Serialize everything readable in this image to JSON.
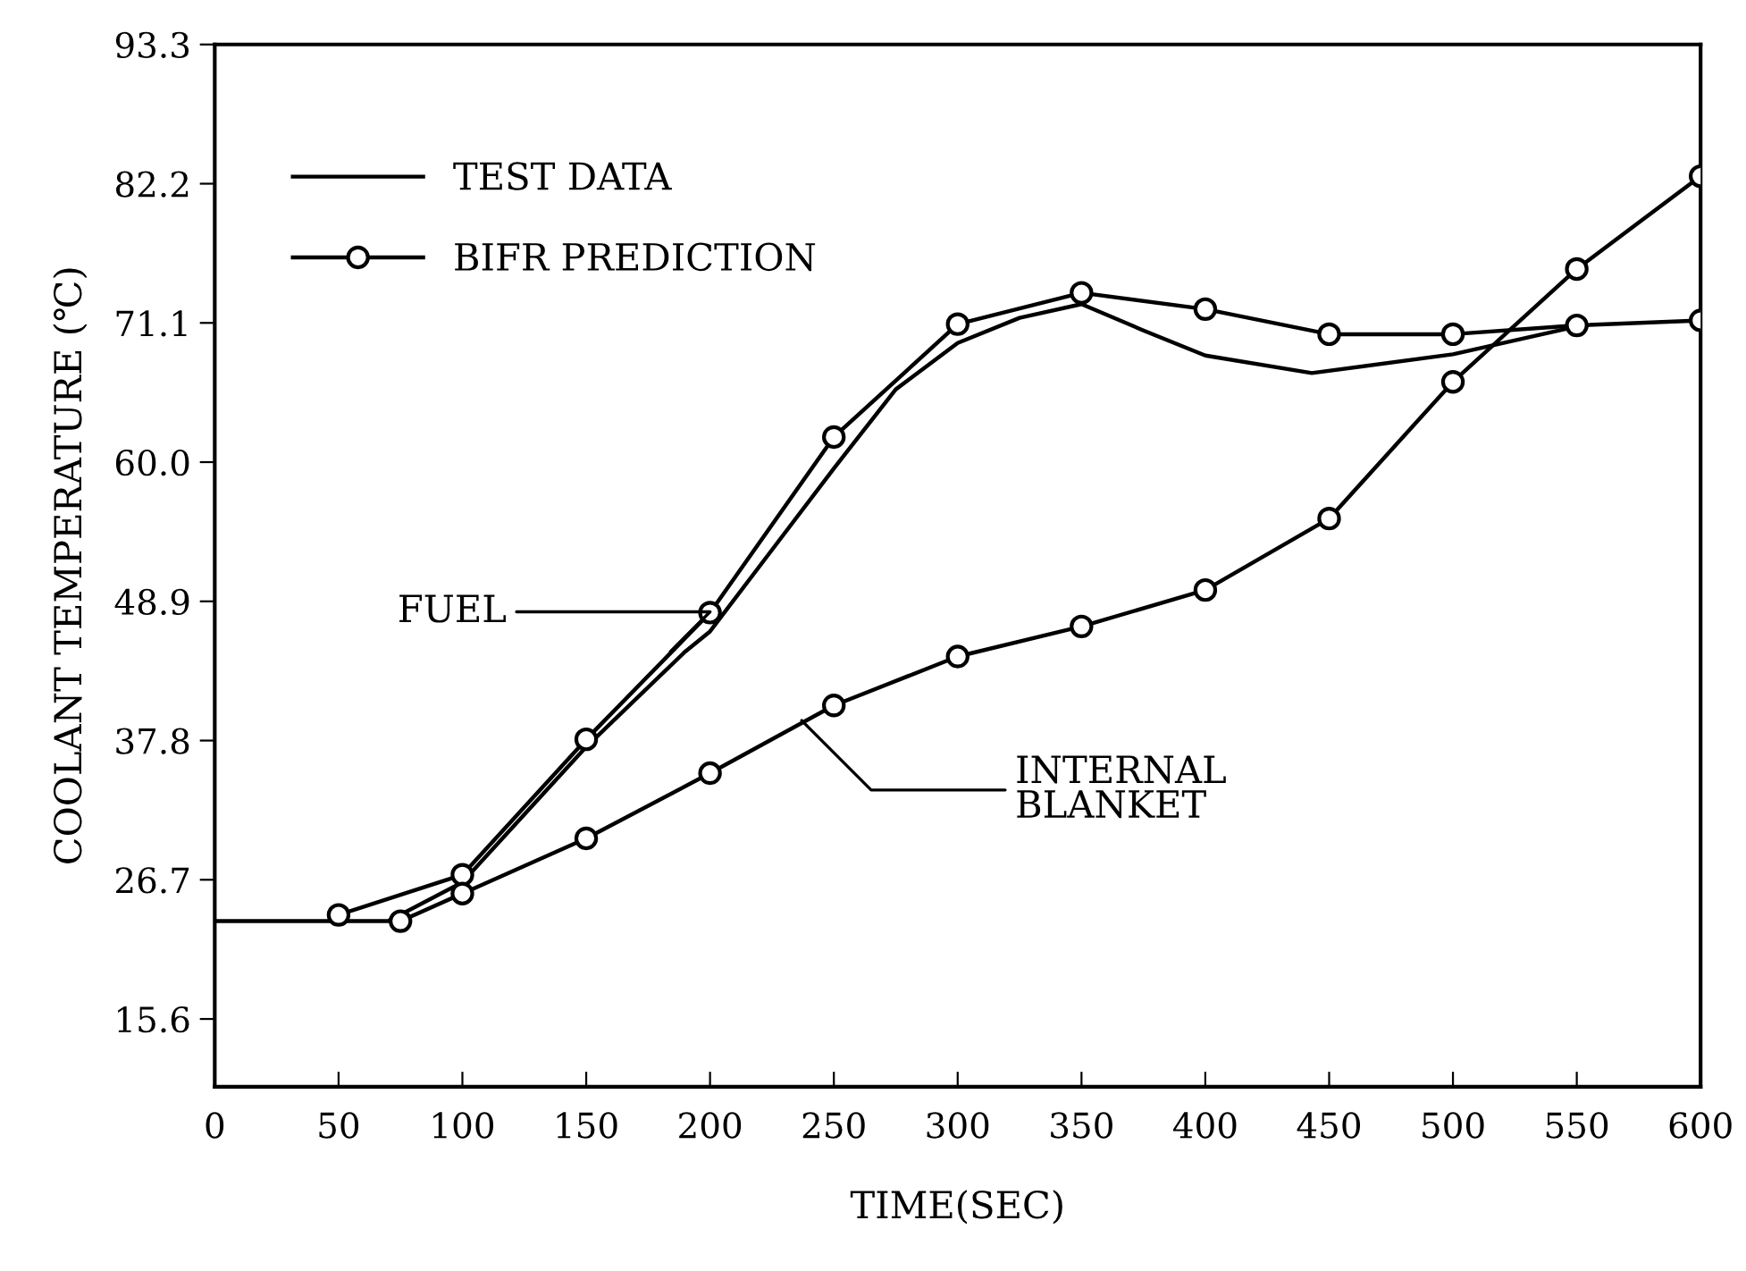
{
  "chart_data": {
    "type": "line",
    "xlabel": "TIME(SEC)",
    "ylabel": "COOLANT TEMPERATURE (℃)",
    "xlim": [
      0,
      600
    ],
    "xticks": [
      0,
      50,
      100,
      150,
      200,
      250,
      300,
      350,
      400,
      450,
      500,
      550,
      600
    ],
    "ylim": [
      10.2,
      93.3
    ],
    "yticks": [
      15.6,
      26.7,
      37.8,
      48.9,
      {
        "value": 60,
        "label": "60.0"
      },
      71.1,
      82.2,
      93.3
    ],
    "grid": false,
    "legend": "top left",
    "series": [
      {
        "name": "TEST DATA",
        "color": "#000000",
        "marker": "none",
        "line_style": "solid",
        "x": [
          0,
          70,
          100,
          150,
          190,
          200,
          225,
          250,
          275,
          300,
          325,
          350,
          375,
          400,
          443,
          500,
          545
        ],
        "values": [
          23.4,
          23.4,
          26.5,
          37.3,
          44.9,
          46.5,
          53.0,
          59.5,
          65.8,
          69.5,
          71.5,
          72.6,
          70.5,
          68.5,
          67.1,
          68.6,
          70.6
        ]
      },
      {
        "name": "BIFR PREDICTION",
        "color": "#000000",
        "marker": "circle",
        "line_style": "solid",
        "x": [
          50,
          100,
          150,
          200,
          250,
          300,
          350,
          400,
          450,
          500,
          550,
          600
        ],
        "values": [
          23.9,
          27.1,
          37.9,
          48.0,
          62.0,
          71.0,
          73.5,
          72.2,
          70.2,
          70.2,
          70.9,
          71.3
        ]
      },
      {
        "color": "#000000",
        "marker": "circle",
        "line_style": "solid",
        "x": [
          75,
          100,
          150,
          200,
          250,
          300,
          350,
          400,
          450,
          500,
          550,
          600
        ],
        "values": [
          23.4,
          25.6,
          30.0,
          35.2,
          40.6,
          44.5,
          46.9,
          49.8,
          55.5,
          66.4,
          75.4,
          82.8
        ]
      }
    ],
    "annotations": [
      {
        "text": "FUEL",
        "x": 184,
        "y": 44.9
      },
      {
        "text": "INTERNAL\nBLANKET",
        "x": 237,
        "y": 39.4
      }
    ]
  }
}
